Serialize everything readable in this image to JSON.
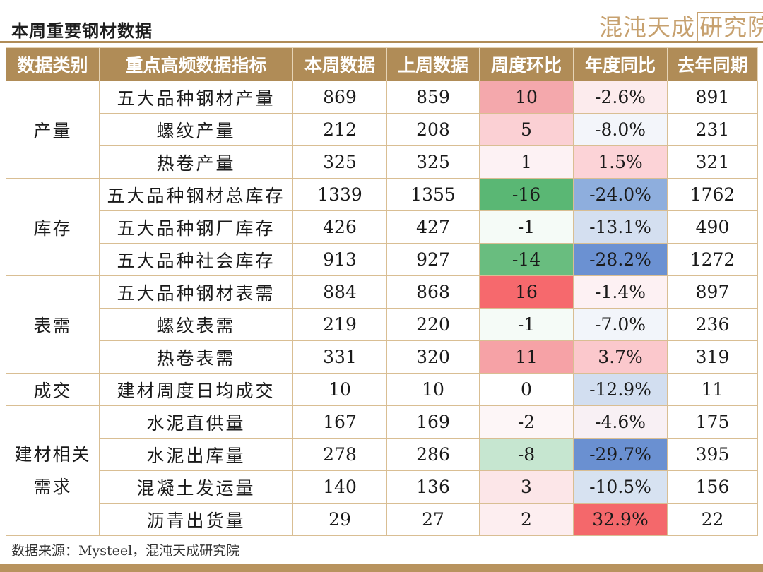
{
  "title": "本周重要钢材数据",
  "logo": {
    "text": "混沌天成",
    "boxed": "研究院"
  },
  "table": {
    "headers": [
      "数据类别",
      "重点高频数据指标",
      "本周数据",
      "上周数据",
      "周度环比",
      "年度同比",
      "去年同期"
    ],
    "groups": [
      {
        "category": "产量",
        "rows": [
          {
            "indicator": "五大品种钢材产量",
            "this_week": "869",
            "last_week": "859",
            "wow": "10",
            "yoy": "-2.6%",
            "last_year": "891"
          },
          {
            "indicator": "螺纹产量",
            "this_week": "212",
            "last_week": "208",
            "wow": "5",
            "yoy": "-8.0%",
            "last_year": "231"
          },
          {
            "indicator": "热卷产量",
            "this_week": "325",
            "last_week": "325",
            "wow": "1",
            "yoy": "1.5%",
            "last_year": "321"
          }
        ]
      },
      {
        "category": "库存",
        "rows": [
          {
            "indicator": "五大品种钢材总库存",
            "this_week": "1339",
            "last_week": "1355",
            "wow": "-16",
            "yoy": "-24.0%",
            "last_year": "1762"
          },
          {
            "indicator": "五大品种钢厂库存",
            "this_week": "426",
            "last_week": "427",
            "wow": "-1",
            "yoy": "-13.1%",
            "last_year": "490"
          },
          {
            "indicator": "五大品种社会库存",
            "this_week": "913",
            "last_week": "927",
            "wow": "-14",
            "yoy": "-28.2%",
            "last_year": "1272"
          }
        ]
      },
      {
        "category": "表需",
        "rows": [
          {
            "indicator": "五大品种钢材表需",
            "this_week": "884",
            "last_week": "868",
            "wow": "16",
            "yoy": "-1.4%",
            "last_year": "897"
          },
          {
            "indicator": "螺纹表需",
            "this_week": "219",
            "last_week": "220",
            "wow": "-1",
            "yoy": "-7.0%",
            "last_year": "236"
          },
          {
            "indicator": "热卷表需",
            "this_week": "331",
            "last_week": "320",
            "wow": "11",
            "yoy": "3.7%",
            "last_year": "319"
          }
        ]
      },
      {
        "category": "成交",
        "rows": [
          {
            "indicator": "建材周度日均成交",
            "this_week": "10",
            "last_week": "10",
            "wow": "0",
            "yoy": "-12.9%",
            "last_year": "11"
          }
        ]
      },
      {
        "category_lines": [
          "建材相关",
          "需求"
        ],
        "rows": [
          {
            "indicator": "水泥直供量",
            "this_week": "167",
            "last_week": "169",
            "wow": "-2",
            "yoy": "-4.6%",
            "last_year": "175"
          },
          {
            "indicator": "水泥出库量",
            "this_week": "278",
            "last_week": "286",
            "wow": "-8",
            "yoy": "-29.7%",
            "last_year": "395"
          },
          {
            "indicator": "混凝土发运量",
            "this_week": "140",
            "last_week": "136",
            "wow": "3",
            "yoy": "-10.5%",
            "last_year": "156"
          },
          {
            "indicator": "沥青出货量",
            "this_week": "29",
            "last_week": "27",
            "wow": "2",
            "yoy": "32.9%",
            "last_year": "22"
          }
        ]
      }
    ]
  },
  "colors": {
    "header_bg": "#b08c57",
    "wow_fill": [
      "#f4a8ac",
      "#fbd0d4",
      "#fdf2f4",
      "#5ab774",
      "#f5fbf7",
      "#69bd7f",
      "#f6696d",
      "#f5fbf7",
      "#f6a2a6",
      "#ffffff",
      "#fdf6f7",
      "#c6e6d0",
      "#fce6e8",
      "#fdeef0"
    ],
    "yoy_fill": [
      "#fcebed",
      "#f3f5fa",
      "#fcd3d7",
      "#8eaedd",
      "#d4dff0",
      "#6b91d2",
      "#fdf1f3",
      "#f2f5fa",
      "#fbc8cc",
      "#d2def0",
      "#f8f0f4",
      "#6a90d1",
      "#d7e2f1",
      "#f4686b"
    ]
  },
  "footer": "数据来源：Mysteel，混沌天成研究院"
}
